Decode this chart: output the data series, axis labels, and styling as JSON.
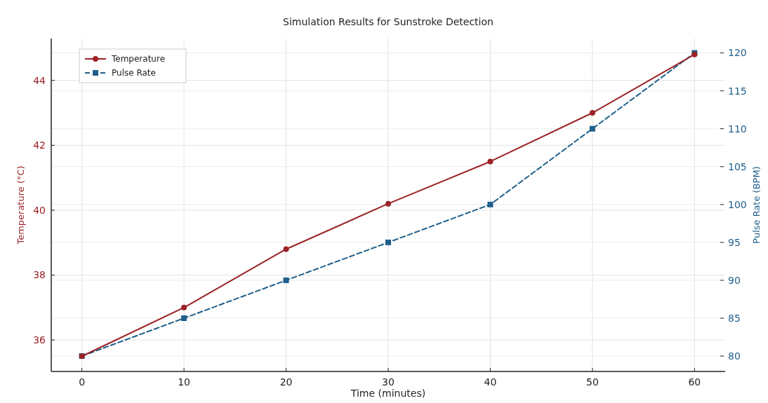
{
  "chart_data": {
    "type": "line",
    "title": "Simulation Results for Sunstroke Detection",
    "xlabel": "Time (minutes)",
    "ylabel": "Temperature (°C)",
    "y2label": "Pulse Rate (BPM)",
    "x": [
      0,
      10,
      20,
      30,
      40,
      50,
      60
    ],
    "series": [
      {
        "name": "Temperature",
        "color": "#9b2226",
        "values": [
          35.5,
          37.0,
          38.8,
          40.2,
          41.5,
          43.0,
          44.8
        ],
        "marker": "circle",
        "line_style": "solid"
      },
      {
        "name": "Pulse Rate",
        "color": "#1f5f8b",
        "values": [
          80,
          85,
          90,
          95,
          100,
          110,
          120
        ],
        "marker": "square",
        "line_style": "dashed",
        "axis": "y2"
      }
    ],
    "xlim": [
      -3,
      63
    ],
    "xticks": [
      0,
      10,
      20,
      30,
      40,
      50,
      60
    ],
    "ylim": [
      35.03,
      45.29
    ],
    "yticks": [
      36,
      38,
      40,
      42,
      44
    ],
    "y2lim": [
      77.97,
      121.9
    ],
    "y2ticks": [
      80,
      85,
      90,
      95,
      100,
      105,
      110,
      115,
      120
    ],
    "grid": true,
    "legend": "top left"
  }
}
